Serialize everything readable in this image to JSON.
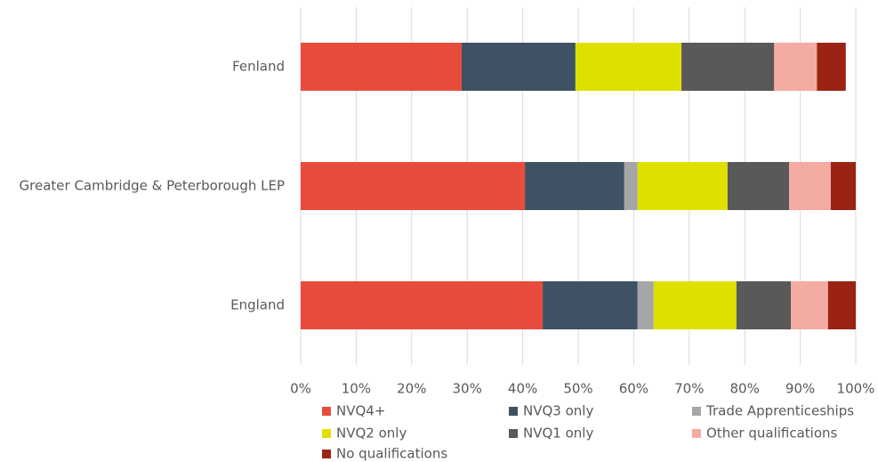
{
  "chart_data": {
    "type": "stacked_bar_horizontal",
    "categories": [
      "Fenland",
      "Greater Cambridge & Peterborough LEP",
      "England"
    ],
    "series": [
      {
        "name": "NVQ4+",
        "color": "#e84c3d",
        "values": [
          29.0,
          40.4,
          43.6
        ]
      },
      {
        "name": "NVQ3 only",
        "color": "#3e5263",
        "values": [
          20.5,
          17.9,
          17.1
        ]
      },
      {
        "name": "Trade Apprenticeships",
        "color": "#a6a6a6",
        "values": [
          0,
          2.4,
          2.9
        ]
      },
      {
        "name": "NVQ2 only",
        "color": "#e0e000",
        "values": [
          19.1,
          16.2,
          14.9
        ]
      },
      {
        "name": "NVQ1 only",
        "color": "#595959",
        "values": [
          16.7,
          11.1,
          9.8
        ]
      },
      {
        "name": "Other qualifications",
        "color": "#f4aba2",
        "values": [
          7.7,
          7.5,
          6.7
        ]
      },
      {
        "name": "No qualifications",
        "color": "#9b2314",
        "values": [
          5.2,
          4.5,
          5.0
        ]
      }
    ],
    "xlim": [
      0,
      100
    ],
    "xticks": [
      {
        "value": 0,
        "label": "0%"
      },
      {
        "value": 10,
        "label": "10%"
      },
      {
        "value": 20,
        "label": "20%"
      },
      {
        "value": 30,
        "label": "30%"
      },
      {
        "value": 40,
        "label": "40%"
      },
      {
        "value": 50,
        "label": "50%"
      },
      {
        "value": 60,
        "label": "60%"
      },
      {
        "value": 70,
        "label": "70%"
      },
      {
        "value": 80,
        "label": "80%"
      },
      {
        "value": 90,
        "label": "90%"
      },
      {
        "value": 100,
        "label": "100%"
      }
    ],
    "grid": true,
    "legend": "bottom"
  }
}
